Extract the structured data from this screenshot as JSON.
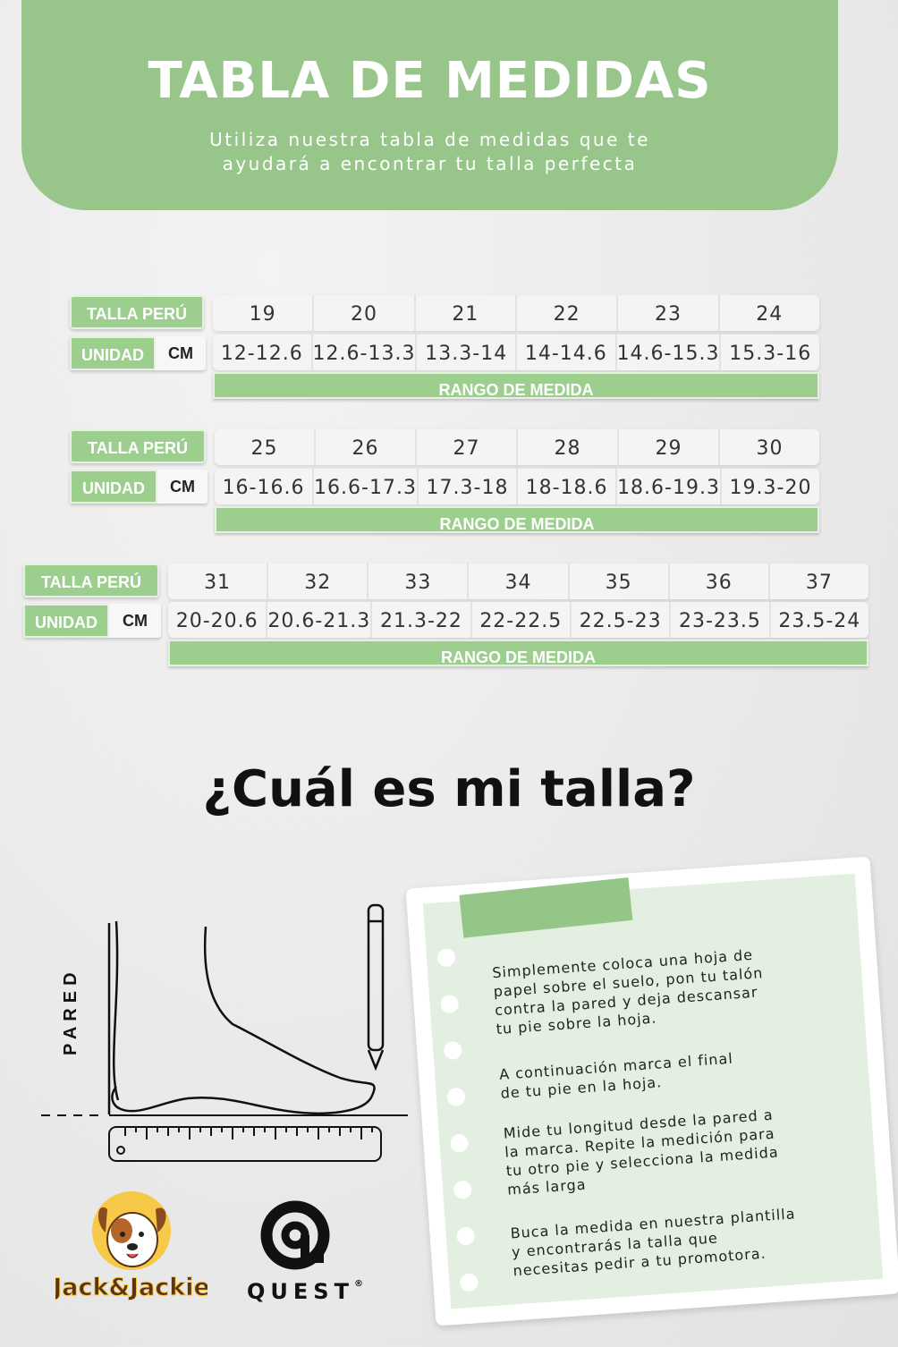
{
  "header": {
    "title": "TABLA DE MEDIDAS",
    "subtitle_line1": "Utiliza nuestra tabla de medidas que te",
    "subtitle_line2": "ayudará a encontrar tu talla perfecta"
  },
  "labels": {
    "talla": "TALLA PERÚ",
    "unidad": "UNIDAD",
    "cm": "CM",
    "rango": "RANGO DE MEDIDA"
  },
  "tables": [
    {
      "sizes": [
        "19",
        "20",
        "21",
        "22",
        "23",
        "24"
      ],
      "ranges": [
        "12-12.6",
        "12.6-13.3",
        "13.3-14",
        "14-14.6",
        "14.6-15.3",
        "15.3-16"
      ]
    },
    {
      "sizes": [
        "25",
        "26",
        "27",
        "28",
        "29",
        "30"
      ],
      "ranges": [
        "16-16.6",
        "16.6-17.3",
        "17.3-18",
        "18-18.6",
        "18.6-19.3",
        "19.3-20"
      ]
    },
    {
      "sizes": [
        "31",
        "32",
        "33",
        "34",
        "35",
        "36",
        "37"
      ],
      "ranges": [
        "20-20.6",
        "20.6-21.3",
        "21.3-22",
        "22-22.5",
        "22.5-23",
        "23-23.5",
        "23.5-24"
      ]
    }
  ],
  "question": "¿Cuál es mi talla?",
  "diagram": {
    "wall_label": "PARED"
  },
  "instructions": [
    [
      "Simplemente coloca una hoja de",
      "papel sobre el suelo, pon tu talón",
      "contra la pared y deja descansar",
      "tu pie sobre la hoja."
    ],
    [
      "A continuación marca el final",
      "de tu pie en la hoja."
    ],
    [
      "Mide tu longitud desde la pared a",
      "la marca. Repite la medición para",
      "tu otro pie y selecciona la medida",
      "más larga"
    ],
    [
      "Buca la medida en nuestra plantilla",
      "y encontrarás la talla que",
      "necesitas pedir a tu promotora."
    ]
  ],
  "logos": {
    "brand1": "Jack&Jackie",
    "brand2": "QUEST",
    "brand2_mark": "®"
  },
  "colors": {
    "accent_green": "#97c58a",
    "note_green": "#e3efe0"
  }
}
